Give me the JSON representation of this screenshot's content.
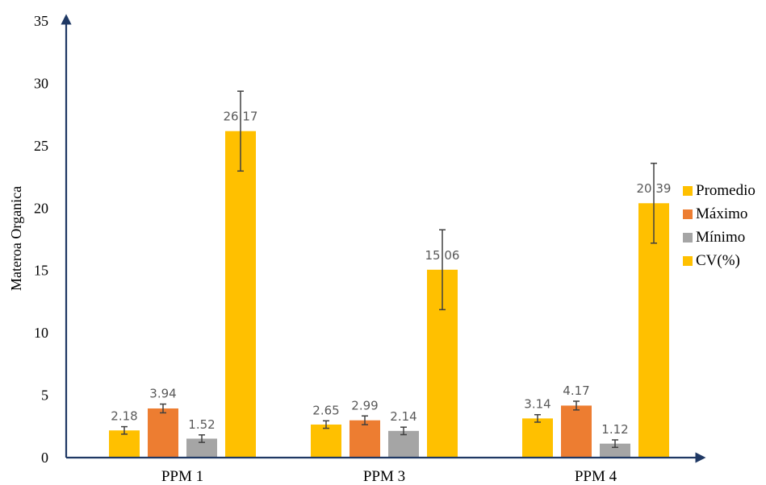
{
  "chart_data": {
    "type": "bar",
    "categories": [
      "PPM 1",
      "PPM 3",
      "PPM 4"
    ],
    "series": [
      {
        "name": "Promedio",
        "values": [
          2.18,
          2.65,
          3.14
        ],
        "errors": [
          0.3,
          0.3,
          0.3
        ],
        "color": "#FFC000"
      },
      {
        "name": "Máximo",
        "values": [
          3.94,
          2.99,
          4.17
        ],
        "errors": [
          0.35,
          0.35,
          0.35
        ],
        "color": "#ED7D31"
      },
      {
        "name": "Mínimo",
        "values": [
          1.52,
          2.14,
          1.12
        ],
        "errors": [
          0.3,
          0.3,
          0.3
        ],
        "color": "#A5A5A5"
      },
      {
        "name": "CV(%)",
        "values": [
          26.17,
          15.06,
          20.39
        ],
        "errors": [
          3.2,
          3.2,
          3.2
        ],
        "color": "#FFC000"
      }
    ],
    "data_labels": [
      [
        "2.18",
        "2.65",
        "3.14"
      ],
      [
        "3.94",
        "2.99",
        "4.17"
      ],
      [
        "1.52",
        "2.14",
        "1.12"
      ],
      [
        "26.17",
        "15.06",
        "20.39"
      ]
    ],
    "ylabel": "Materoa Organica",
    "xlabel": "",
    "ylim": [
      0,
      35
    ],
    "yticks": [
      0,
      5,
      10,
      15,
      20,
      25,
      30,
      35
    ],
    "ytick_labels": [
      "0",
      "5",
      "10",
      "15",
      "20",
      "25",
      "30",
      "35"
    ],
    "grid": false,
    "legend_position": "right",
    "axis_color": "#1F3864"
  }
}
